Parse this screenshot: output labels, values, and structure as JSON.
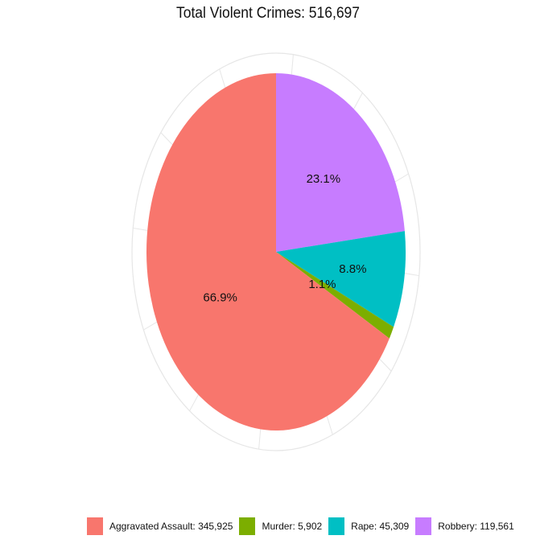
{
  "chart_data": {
    "type": "pie",
    "title": "Total Violent Crimes:  516,697",
    "start": "top",
    "direction": "clockwise",
    "slices": [
      {
        "name": "Robbery",
        "value": 119561,
        "label": "23.1%",
        "legend": "Robbery: 119,561",
        "color": "#C77CFF"
      },
      {
        "name": "Rape",
        "value": 45309,
        "label": "8.8%",
        "legend": "Rape:  45,309",
        "color": "#00BFC4"
      },
      {
        "name": "Murder",
        "value": 5902,
        "label": "1.1%",
        "legend": "Murder:   5,902",
        "color": "#7CAE00"
      },
      {
        "name": "Aggravated Assault",
        "value": 345925,
        "label": "66.9%",
        "legend": "Aggravated Assault: 345,925",
        "color": "#F8766D"
      }
    ],
    "legend_order": [
      "Aggravated Assault",
      "Murder",
      "Rape",
      "Robbery"
    ],
    "legend_position": "bottom",
    "grid": true
  }
}
